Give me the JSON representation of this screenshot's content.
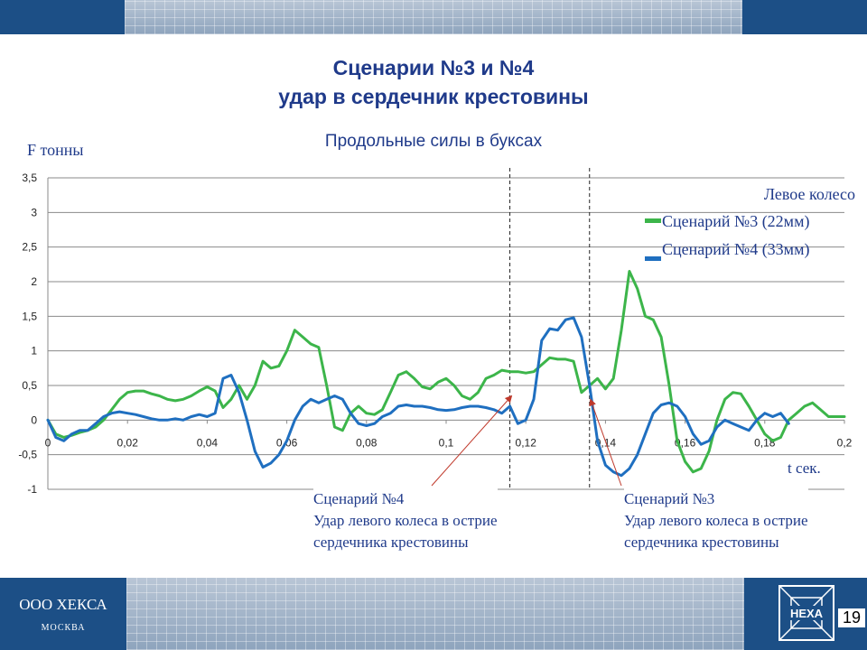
{
  "title_line1": "Сценарии №3 и №4",
  "title_line2": "удар в сердечник крестовины",
  "chart_data": {
    "type": "line",
    "title": "Продольные силы в буксах",
    "ylabel": "F тонны",
    "xlabel": "t сек.",
    "xlim": [
      0,
      0.2
    ],
    "ylim": [
      -1,
      3.5
    ],
    "x_ticks": [
      "0",
      "0,02",
      "0,04",
      "0,06",
      "0,08",
      "0,1",
      "0,12",
      "0,14",
      "0,16",
      "0,18",
      "0,2"
    ],
    "y_ticks": [
      "3,5",
      "3",
      "2,5",
      "2",
      "1,5",
      "1",
      "0,5",
      "0",
      "-0,5",
      "-1"
    ],
    "legend_title": "Левое колесо",
    "legend_position": "top-right",
    "grid": "horizontal",
    "series": [
      {
        "name": "Сценарий №3 (22мм)",
        "color": "#3cb54a",
        "points": [
          [
            0,
            0
          ],
          [
            0.002,
            -0.2
          ],
          [
            0.004,
            -0.25
          ],
          [
            0.006,
            -0.22
          ],
          [
            0.008,
            -0.18
          ],
          [
            0.01,
            -0.15
          ],
          [
            0.012,
            -0.1
          ],
          [
            0.014,
            0.0
          ],
          [
            0.016,
            0.15
          ],
          [
            0.018,
            0.3
          ],
          [
            0.02,
            0.4
          ],
          [
            0.022,
            0.42
          ],
          [
            0.024,
            0.42
          ],
          [
            0.026,
            0.38
          ],
          [
            0.028,
            0.35
          ],
          [
            0.03,
            0.3
          ],
          [
            0.032,
            0.28
          ],
          [
            0.034,
            0.3
          ],
          [
            0.036,
            0.35
          ],
          [
            0.038,
            0.42
          ],
          [
            0.04,
            0.48
          ],
          [
            0.042,
            0.42
          ],
          [
            0.043,
            0.3
          ],
          [
            0.044,
            0.18
          ],
          [
            0.046,
            0.3
          ],
          [
            0.048,
            0.5
          ],
          [
            0.05,
            0.3
          ],
          [
            0.052,
            0.5
          ],
          [
            0.054,
            0.85
          ],
          [
            0.056,
            0.75
          ],
          [
            0.058,
            0.78
          ],
          [
            0.06,
            1.0
          ],
          [
            0.062,
            1.3
          ],
          [
            0.064,
            1.2
          ],
          [
            0.066,
            1.1
          ],
          [
            0.068,
            1.05
          ],
          [
            0.07,
            0.5
          ],
          [
            0.072,
            -0.1
          ],
          [
            0.074,
            -0.15
          ],
          [
            0.076,
            0.1
          ],
          [
            0.078,
            0.2
          ],
          [
            0.08,
            0.1
          ],
          [
            0.082,
            0.08
          ],
          [
            0.084,
            0.15
          ],
          [
            0.086,
            0.4
          ],
          [
            0.088,
            0.65
          ],
          [
            0.09,
            0.7
          ],
          [
            0.092,
            0.6
          ],
          [
            0.094,
            0.48
          ],
          [
            0.096,
            0.45
          ],
          [
            0.098,
            0.55
          ],
          [
            0.1,
            0.6
          ],
          [
            0.102,
            0.5
          ],
          [
            0.104,
            0.35
          ],
          [
            0.106,
            0.3
          ],
          [
            0.108,
            0.4
          ],
          [
            0.11,
            0.6
          ],
          [
            0.112,
            0.65
          ],
          [
            0.114,
            0.72
          ],
          [
            0.116,
            0.7
          ],
          [
            0.118,
            0.7
          ],
          [
            0.12,
            0.68
          ],
          [
            0.122,
            0.7
          ],
          [
            0.124,
            0.8
          ],
          [
            0.126,
            0.9
          ],
          [
            0.128,
            0.88
          ],
          [
            0.13,
            0.88
          ],
          [
            0.132,
            0.85
          ],
          [
            0.134,
            0.4
          ],
          [
            0.136,
            0.5
          ],
          [
            0.138,
            0.6
          ],
          [
            0.14,
            0.45
          ],
          [
            0.142,
            0.6
          ],
          [
            0.144,
            1.3
          ],
          [
            0.146,
            2.15
          ],
          [
            0.148,
            1.9
          ],
          [
            0.15,
            1.5
          ],
          [
            0.152,
            1.45
          ],
          [
            0.154,
            1.2
          ],
          [
            0.156,
            0.5
          ],
          [
            0.158,
            -0.3
          ],
          [
            0.16,
            -0.6
          ],
          [
            0.162,
            -0.75
          ],
          [
            0.164,
            -0.7
          ],
          [
            0.166,
            -0.45
          ],
          [
            0.168,
            0.0
          ],
          [
            0.17,
            0.3
          ],
          [
            0.172,
            0.4
          ],
          [
            0.174,
            0.38
          ],
          [
            0.176,
            0.2
          ],
          [
            0.178,
            0.0
          ],
          [
            0.18,
            -0.2
          ],
          [
            0.182,
            -0.3
          ],
          [
            0.184,
            -0.25
          ],
          [
            0.186,
            0.0
          ],
          [
            0.188,
            0.1
          ],
          [
            0.19,
            0.2
          ],
          [
            0.192,
            0.25
          ],
          [
            0.194,
            0.15
          ],
          [
            0.196,
            0.05
          ],
          [
            0.198,
            0.05
          ],
          [
            0.2,
            0.05
          ]
        ]
      },
      {
        "name": "Сценарий №4 (33мм)",
        "color": "#1f6fc0",
        "points": [
          [
            0,
            0
          ],
          [
            0.002,
            -0.25
          ],
          [
            0.004,
            -0.3
          ],
          [
            0.006,
            -0.2
          ],
          [
            0.008,
            -0.15
          ],
          [
            0.01,
            -0.15
          ],
          [
            0.012,
            -0.05
          ],
          [
            0.014,
            0.05
          ],
          [
            0.016,
            0.1
          ],
          [
            0.018,
            0.12
          ],
          [
            0.02,
            0.1
          ],
          [
            0.022,
            0.08
          ],
          [
            0.024,
            0.05
          ],
          [
            0.026,
            0.02
          ],
          [
            0.028,
            0.0
          ],
          [
            0.03,
            0.0
          ],
          [
            0.032,
            0.02
          ],
          [
            0.034,
            0.0
          ],
          [
            0.036,
            0.05
          ],
          [
            0.038,
            0.08
          ],
          [
            0.04,
            0.05
          ],
          [
            0.042,
            0.1
          ],
          [
            0.044,
            0.6
          ],
          [
            0.046,
            0.65
          ],
          [
            0.048,
            0.4
          ],
          [
            0.05,
            0.0
          ],
          [
            0.052,
            -0.45
          ],
          [
            0.054,
            -0.68
          ],
          [
            0.056,
            -0.62
          ],
          [
            0.058,
            -0.5
          ],
          [
            0.06,
            -0.3
          ],
          [
            0.062,
            0.0
          ],
          [
            0.064,
            0.2
          ],
          [
            0.066,
            0.3
          ],
          [
            0.068,
            0.25
          ],
          [
            0.07,
            0.3
          ],
          [
            0.072,
            0.35
          ],
          [
            0.074,
            0.3
          ],
          [
            0.076,
            0.1
          ],
          [
            0.078,
            -0.05
          ],
          [
            0.08,
            -0.08
          ],
          [
            0.082,
            -0.05
          ],
          [
            0.084,
            0.05
          ],
          [
            0.086,
            0.1
          ],
          [
            0.088,
            0.2
          ],
          [
            0.09,
            0.22
          ],
          [
            0.092,
            0.2
          ],
          [
            0.094,
            0.2
          ],
          [
            0.096,
            0.18
          ],
          [
            0.098,
            0.15
          ],
          [
            0.1,
            0.14
          ],
          [
            0.102,
            0.15
          ],
          [
            0.104,
            0.18
          ],
          [
            0.106,
            0.2
          ],
          [
            0.108,
            0.2
          ],
          [
            0.11,
            0.18
          ],
          [
            0.112,
            0.15
          ],
          [
            0.114,
            0.1
          ],
          [
            0.116,
            0.2
          ],
          [
            0.118,
            -0.05
          ],
          [
            0.12,
            0.0
          ],
          [
            0.122,
            0.3
          ],
          [
            0.124,
            1.15
          ],
          [
            0.126,
            1.32
          ],
          [
            0.128,
            1.3
          ],
          [
            0.13,
            1.45
          ],
          [
            0.132,
            1.48
          ],
          [
            0.134,
            1.2
          ],
          [
            0.136,
            0.5
          ],
          [
            0.138,
            -0.3
          ],
          [
            0.14,
            -0.65
          ],
          [
            0.142,
            -0.75
          ],
          [
            0.144,
            -0.8
          ],
          [
            0.146,
            -0.7
          ],
          [
            0.148,
            -0.5
          ],
          [
            0.15,
            -0.2
          ],
          [
            0.152,
            0.1
          ],
          [
            0.154,
            0.22
          ],
          [
            0.156,
            0.25
          ],
          [
            0.158,
            0.2
          ],
          [
            0.16,
            0.05
          ],
          [
            0.162,
            -0.2
          ],
          [
            0.164,
            -0.35
          ],
          [
            0.166,
            -0.3
          ],
          [
            0.168,
            -0.1
          ],
          [
            0.17,
            0.0
          ],
          [
            0.172,
            -0.05
          ],
          [
            0.174,
            -0.1
          ],
          [
            0.176,
            -0.15
          ],
          [
            0.178,
            0.0
          ],
          [
            0.18,
            0.1
          ],
          [
            0.182,
            0.05
          ],
          [
            0.184,
            0.1
          ],
          [
            0.186,
            -0.05
          ]
        ]
      }
    ],
    "markers": [
      0.116,
      0.136
    ],
    "annotations": [
      {
        "name": "scenario4",
        "lines": [
          "Сценарий №4",
          "Удар левого колеса в острие",
          "сердечника крестовины"
        ]
      },
      {
        "name": "scenario3",
        "lines": [
          "Сценарий №3",
          "Удар левого колеса в острие",
          "сердечника крестовины"
        ]
      }
    ]
  },
  "footer": {
    "company": "ООО ХЕКСА",
    "city": "МОСКВА",
    "logo_text": "HEXA",
    "page_number": "19"
  }
}
